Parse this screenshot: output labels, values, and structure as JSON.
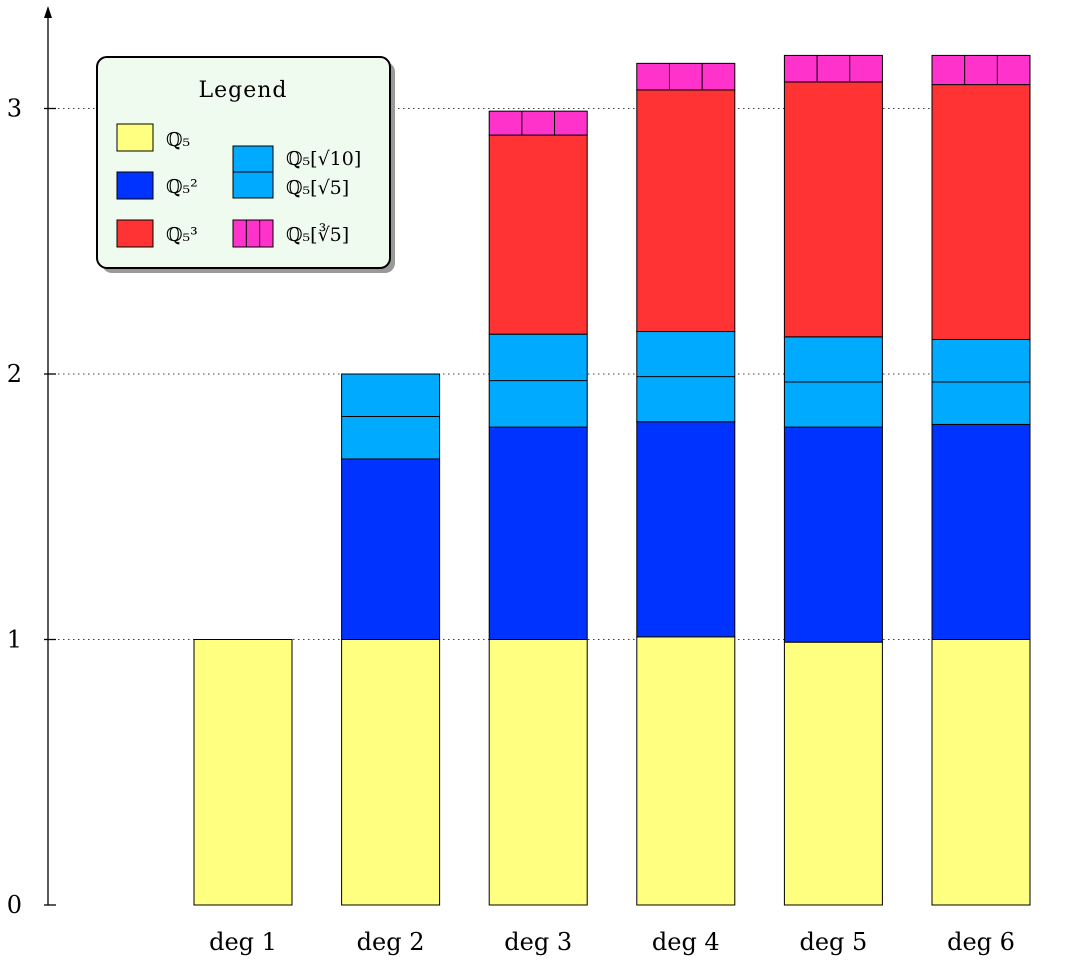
{
  "chart_data": {
    "type": "bar",
    "stacked": true,
    "categories": [
      "deg 1",
      "deg 2",
      "deg 3",
      "deg 4",
      "deg 5",
      "deg 6"
    ],
    "ylim": [
      0,
      3.3
    ],
    "yticks": [
      0,
      1,
      2,
      3
    ],
    "grid": "dotted at y ticks (left of bars)",
    "legend": {
      "title": "Legend",
      "placement": "top-left",
      "entries": [
        {
          "key": "Q5",
          "label": "ℚ₅"
        },
        {
          "key": "Q5_2",
          "label": "ℚ₅²"
        },
        {
          "key": "Q5_3",
          "label": "ℚ₅³"
        },
        {
          "key": "Q5_sqrt",
          "label": "ℚ₅[√10]",
          "label2": "ℚ₅[√5]"
        },
        {
          "key": "Q5_cbrt",
          "label": "ℚ₅[∛5]"
        }
      ]
    },
    "series": [
      {
        "key": "Q5",
        "color": "#ffff80",
        "values": [
          1.0,
          1.0,
          1.0,
          1.01,
          0.99,
          1.0
        ]
      },
      {
        "key": "Q5_2",
        "color": "#0033ff",
        "values": [
          0,
          0.68,
          0.8,
          0.81,
          0.81,
          0.81
        ]
      },
      {
        "key": "Q5_sqrt",
        "color": "#00aaff",
        "split": true,
        "values": [
          0,
          0.32,
          0.35,
          0.34,
          0.34,
          0.32
        ]
      },
      {
        "key": "Q5_3",
        "color": "#ff3333",
        "values": [
          0,
          0,
          0.75,
          0.91,
          0.96,
          0.96
        ]
      },
      {
        "key": "Q5_cbrt",
        "color": "#ff33cc",
        "hatch": "vertical",
        "values": [
          0,
          0,
          0.09,
          0.1,
          0.1,
          0.11
        ]
      }
    ]
  }
}
